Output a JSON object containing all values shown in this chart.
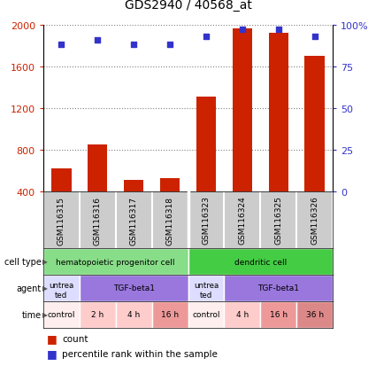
{
  "title": "GDS2940 / 40568_at",
  "samples": [
    "GSM116315",
    "GSM116316",
    "GSM116317",
    "GSM116318",
    "GSM116323",
    "GSM116324",
    "GSM116325",
    "GSM116326"
  ],
  "counts": [
    620,
    850,
    510,
    530,
    1310,
    1960,
    1920,
    1700
  ],
  "percentiles": [
    88,
    91,
    88,
    88,
    93,
    97,
    97,
    93
  ],
  "ylim": [
    400,
    2000
  ],
  "y2lim": [
    0,
    100
  ],
  "yticks": [
    400,
    800,
    1200,
    1600,
    2000
  ],
  "y2ticks": [
    0,
    25,
    50,
    75,
    100
  ],
  "bar_color": "#cc2200",
  "dot_color": "#3333cc",
  "sample_bg_color": "#cccccc",
  "plot_bg": "#ffffff",
  "cell_type_groups": [
    {
      "text": "hematopoietic progenitor cell",
      "start": 0,
      "end": 4,
      "color": "#88dd88"
    },
    {
      "text": "dendritic cell",
      "start": 4,
      "end": 8,
      "color": "#44cc44"
    }
  ],
  "agent_groups": [
    {
      "text": "untreated",
      "start": 0,
      "end": 1,
      "color": "#ddddff"
    },
    {
      "text": "TGF-beta1",
      "start": 1,
      "end": 4,
      "color": "#9977dd"
    },
    {
      "text": "untreated",
      "start": 4,
      "end": 5,
      "color": "#ddddff"
    },
    {
      "text": "TGF-beta1",
      "start": 5,
      "end": 8,
      "color": "#9977dd"
    }
  ],
  "time_groups": [
    {
      "text": "control",
      "start": 0,
      "end": 1,
      "color": "#ffeeee"
    },
    {
      "text": "2 h",
      "start": 1,
      "end": 2,
      "color": "#ffcccc"
    },
    {
      "text": "4 h",
      "start": 2,
      "end": 3,
      "color": "#ffcccc"
    },
    {
      "text": "16 h",
      "start": 3,
      "end": 4,
      "color": "#ee9999"
    },
    {
      "text": "control",
      "start": 4,
      "end": 5,
      "color": "#ffeeee"
    },
    {
      "text": "4 h",
      "start": 5,
      "end": 6,
      "color": "#ffcccc"
    },
    {
      "text": "16 h",
      "start": 6,
      "end": 7,
      "color": "#ee9999"
    },
    {
      "text": "36 h",
      "start": 7,
      "end": 8,
      "color": "#dd8888"
    }
  ],
  "row_labels": [
    "cell type",
    "agent",
    "time"
  ],
  "legend_items": [
    {
      "color": "#cc2200",
      "label": "count"
    },
    {
      "color": "#3333cc",
      "label": "percentile rank within the sample"
    }
  ]
}
